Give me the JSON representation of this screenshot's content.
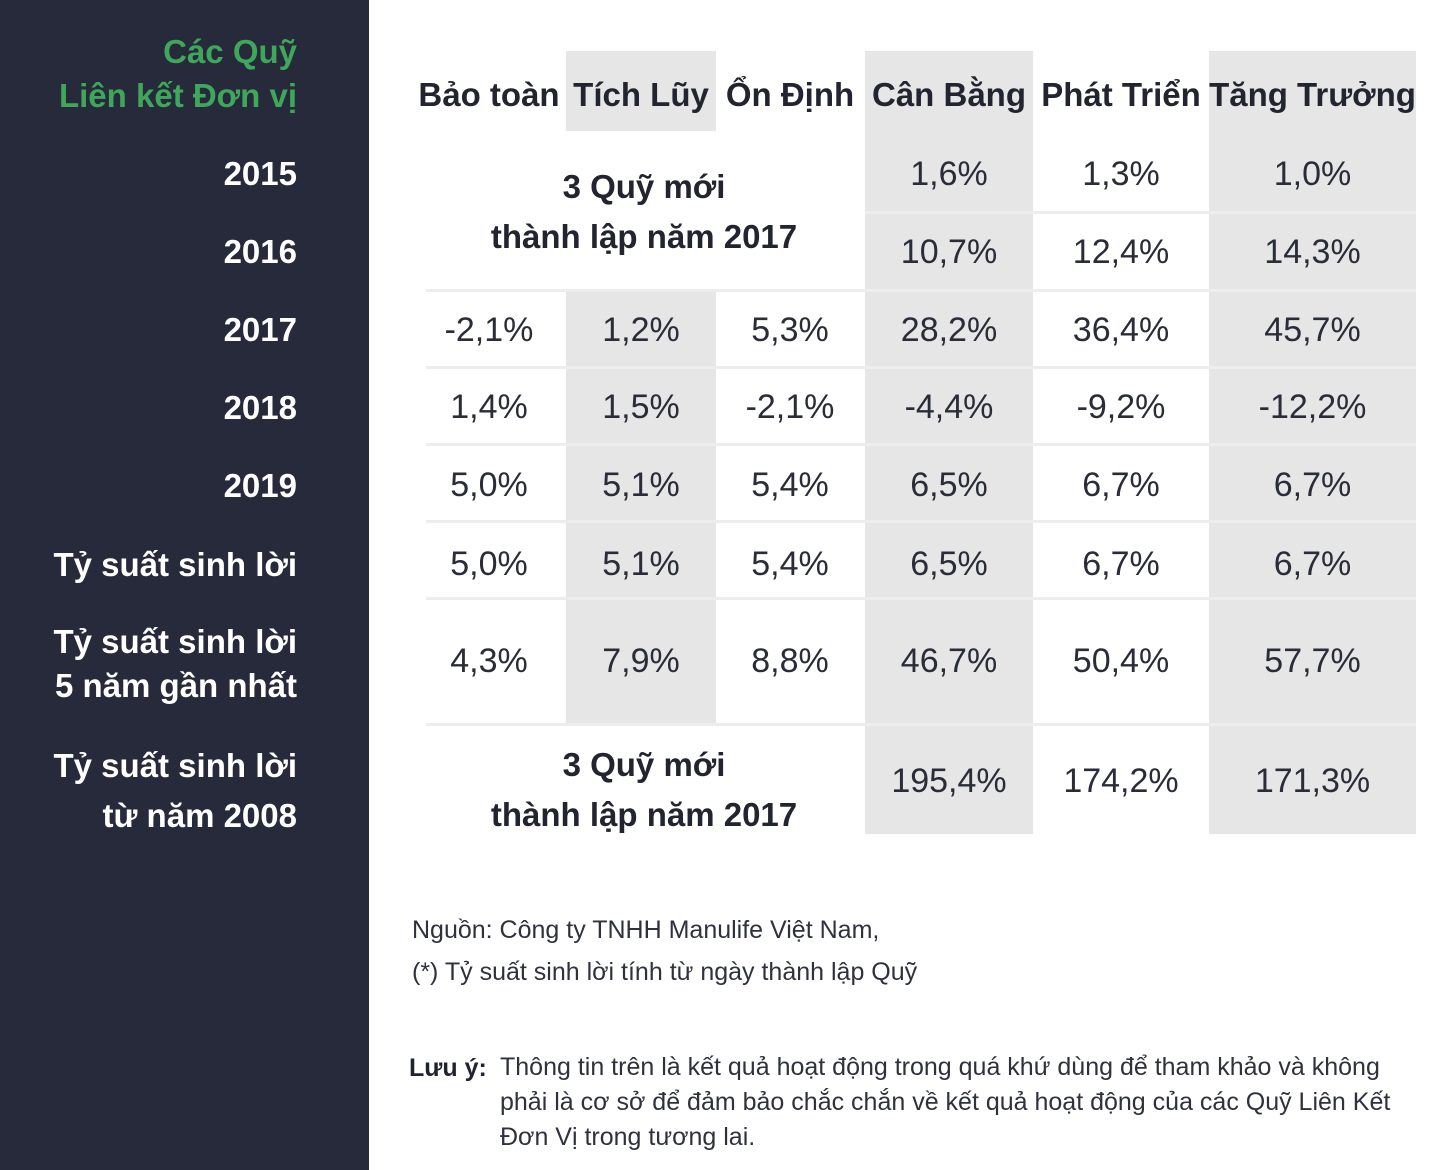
{
  "sidebar": {
    "title_line1": "Các Quỹ",
    "title_line2": "Liên kết Đơn vị",
    "row_labels": [
      "2015",
      "2016",
      "2017",
      "2018",
      "2019",
      "Tỷ suất sinh lời",
      "Tỷ suất sinh lời",
      "5 năm gần nhất",
      "Tỷ suất sinh lời",
      "từ năm 2008"
    ]
  },
  "table": {
    "headers": [
      "Bảo toàn",
      "Tích Lũy",
      "Ổn Định",
      "Cân Bằng",
      "Phát Triển",
      "Tăng Trưởng"
    ],
    "new_funds_note_line1": "3 Quỹ mới",
    "new_funds_note_line2": "thành lập năm 2017",
    "rows": {
      "y2015": [
        "1,6%",
        "1,3%",
        "1,0%"
      ],
      "y2016": [
        "10,7%",
        "12,4%",
        "14,3%"
      ],
      "y2017": [
        "-2,1%",
        "1,2%",
        "5,3%",
        "28,2%",
        "36,4%",
        "45,7%"
      ],
      "y2018": [
        "1,4%",
        "1,5%",
        "-2,1%",
        "-4,4%",
        "-9,2%",
        "-12,2%"
      ],
      "y2019": [
        "5,0%",
        "5,1%",
        "5,4%",
        "6,5%",
        "6,7%",
        "6,7%"
      ],
      "return": [
        "5,0%",
        "5,1%",
        "5,4%",
        "6,5%",
        "6,7%",
        "6,7%"
      ],
      "return_5y": [
        "4,3%",
        "7,9%",
        "8,8%",
        "46,7%",
        "50,4%",
        "57,7%"
      ],
      "return_since_2008": [
        "195,4%",
        "174,2%",
        "171,3%"
      ]
    }
  },
  "footnotes": {
    "source": "Nguồn: Công ty TNHH Manulife Việt Nam,",
    "asterisk": "(*) Tỷ suất sinh lời tính từ ngày thành lập Quỹ",
    "note_label": "Lưu ý:",
    "note_line1": "Thông tin trên là kết quả hoạt động trong quá khứ dùng để tham khảo và không",
    "note_line2": "phải là cơ sở để đảm bảo chắc chắn về kết quả hoạt động của các Quỹ Liên Kết",
    "note_line3": "Đơn Vị trong tương lai."
  },
  "colors": {
    "sidebar_bg": "#262a3b",
    "title_green": "#3fa75a",
    "shade": "#e6e6e6"
  }
}
